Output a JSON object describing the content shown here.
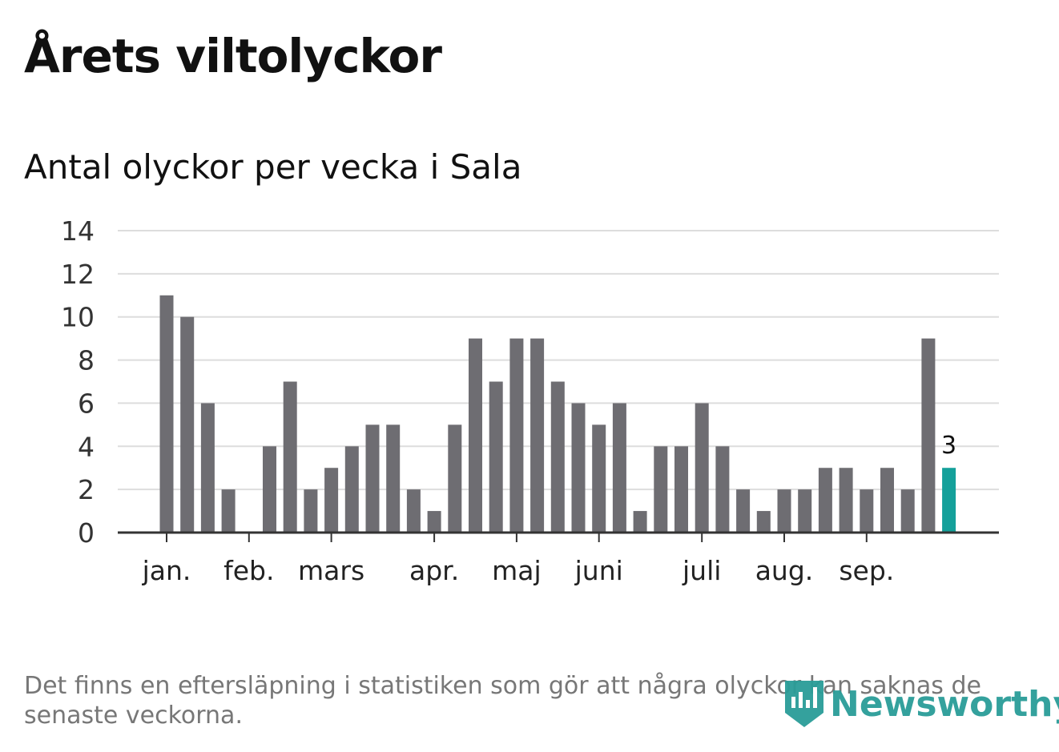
{
  "title": "Årets viltolyckor",
  "subtitle": "Antal olyckor per vecka i Sala",
  "note": "Det finns en eftersläpning i statistiken som gör att några olyckor kan saknas de senaste veckorna.",
  "logo": "Newsworthy",
  "colors": {
    "bar": "#6e6d72",
    "highlight": "#14a09a",
    "grid": "#dddddd",
    "axis": "#333333"
  },
  "chart_data": {
    "type": "bar",
    "title": "Antal olyckor per vecka i Sala",
    "values": [
      11,
      10,
      6,
      2,
      0,
      4,
      7,
      2,
      3,
      4,
      5,
      5,
      2,
      1,
      5,
      9,
      7,
      9,
      9,
      7,
      6,
      5,
      6,
      1,
      4,
      4,
      6,
      4,
      2,
      1,
      2,
      2,
      3,
      3,
      2,
      3,
      2,
      9,
      3
    ],
    "highlight_index": 38,
    "highlight_label": "3",
    "ylim": [
      0,
      14
    ],
    "yticks": [
      "0",
      "2",
      "4",
      "6",
      "8",
      "10",
      "12",
      "14"
    ],
    "month_ticks": [
      {
        "label": "jan.",
        "index": 0
      },
      {
        "label": "feb.",
        "index": 4
      },
      {
        "label": "mars",
        "index": 8
      },
      {
        "label": "apr.",
        "index": 13
      },
      {
        "label": "maj",
        "index": 17
      },
      {
        "label": "juni",
        "index": 21
      },
      {
        "label": "juli",
        "index": 26
      },
      {
        "label": "aug.",
        "index": 30
      },
      {
        "label": "sep.",
        "index": 34
      }
    ],
    "grid": true
  }
}
